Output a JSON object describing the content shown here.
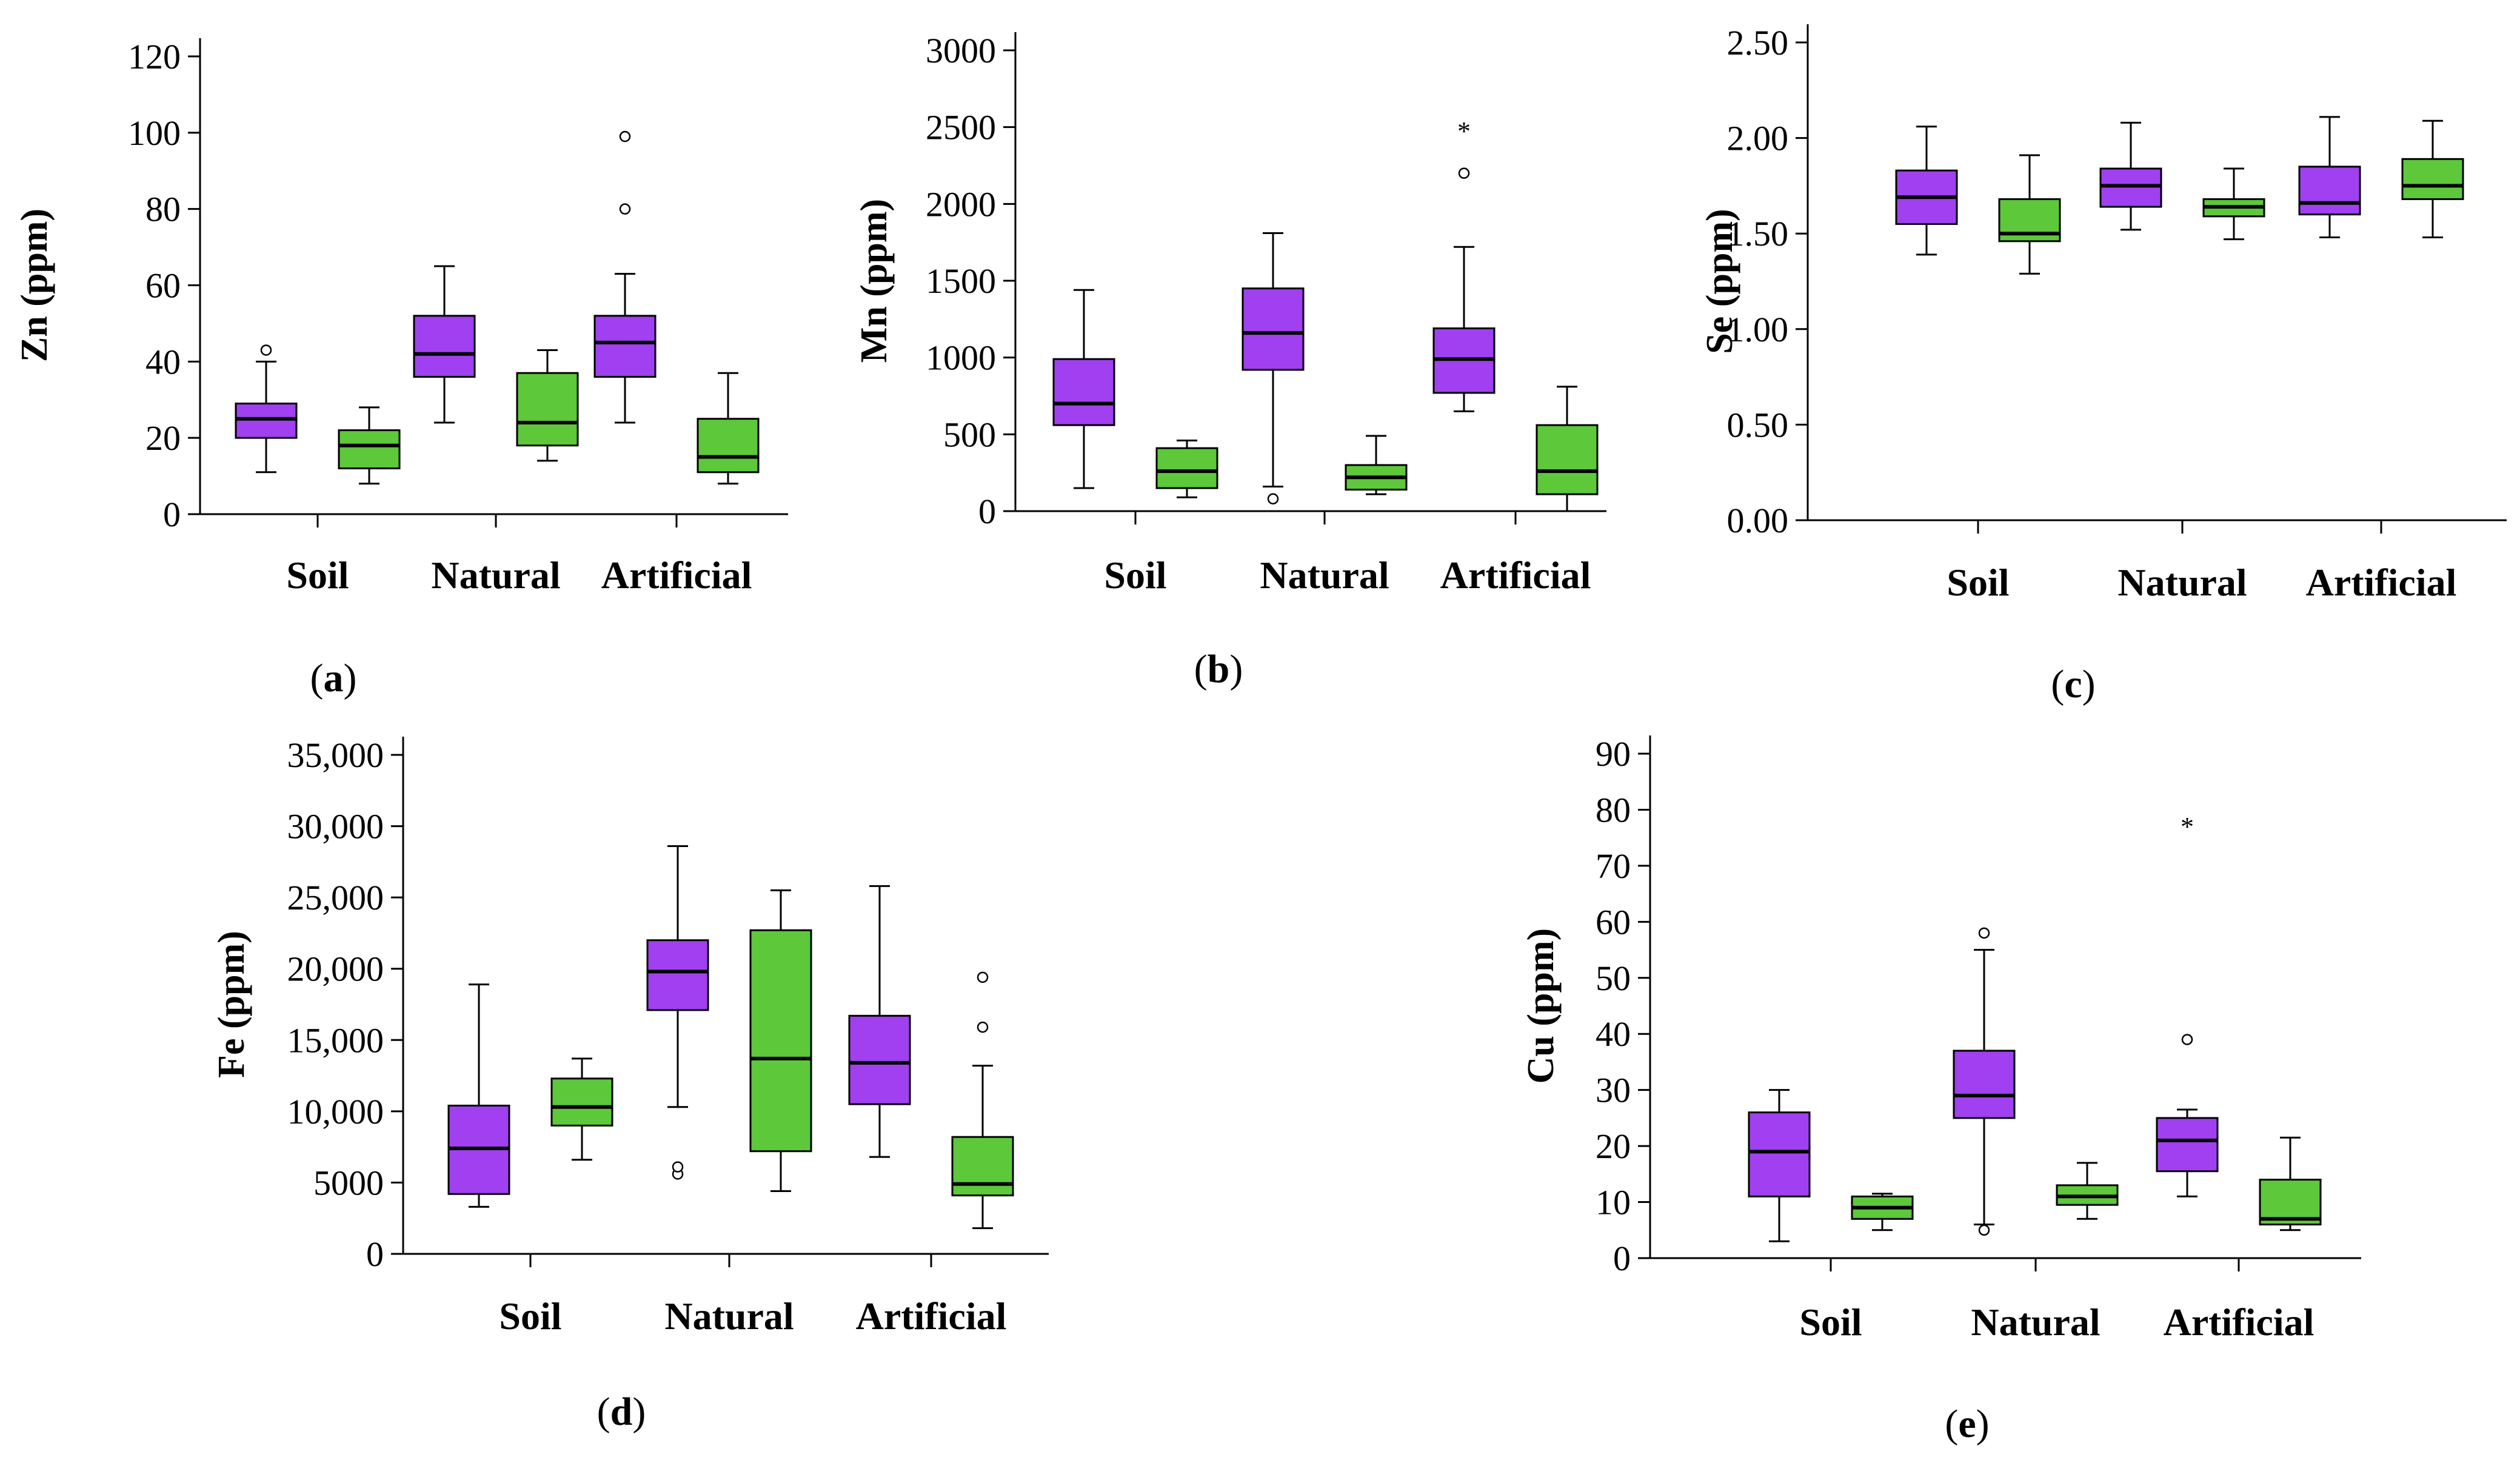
{
  "figure": {
    "colors": {
      "purple": "#a040f0",
      "green": "#5cc83a",
      "axis": "#000000"
    },
    "group_order": [
      "purple",
      "green"
    ]
  },
  "chart_data": [
    {
      "id": "a",
      "type": "box",
      "caption": "(a)",
      "ylabel": "Zn (ppm)",
      "ylim": [
        0,
        120
      ],
      "yticks": [
        0,
        20,
        40,
        60,
        80,
        100,
        120
      ],
      "ytick_labels": [
        "0",
        "20",
        "40",
        "60",
        "80",
        "100",
        "120"
      ],
      "categories": [
        "Soil",
        "Natural",
        "Artificial"
      ],
      "boxes": [
        {
          "category": "Soil",
          "group": "purple",
          "min": 11,
          "q1": 20,
          "median": 25,
          "q3": 29,
          "max": 40,
          "outliers": [
            {
              "v": 43,
              "m": "o"
            }
          ]
        },
        {
          "category": "Soil",
          "group": "green",
          "min": 8,
          "q1": 12,
          "median": 18,
          "q3": 22,
          "max": 28,
          "outliers": []
        },
        {
          "category": "Natural",
          "group": "purple",
          "min": 24,
          "q1": 36,
          "median": 42,
          "q3": 52,
          "max": 65,
          "outliers": []
        },
        {
          "category": "Natural",
          "group": "green",
          "min": 14,
          "q1": 18,
          "median": 24,
          "q3": 37,
          "max": 43,
          "outliers": []
        },
        {
          "category": "Artificial",
          "group": "purple",
          "min": 24,
          "q1": 36,
          "median": 45,
          "q3": 52,
          "max": 63,
          "outliers": [
            {
              "v": 80,
              "m": "o"
            },
            {
              "v": 99,
              "m": "o"
            }
          ]
        },
        {
          "category": "Artificial",
          "group": "green",
          "min": 8,
          "q1": 11,
          "median": 15,
          "q3": 25,
          "max": 37,
          "outliers": []
        }
      ]
    },
    {
      "id": "b",
      "type": "box",
      "caption": "(b)",
      "ylabel": "Mn (ppm)",
      "ylim": [
        0,
        3000
      ],
      "yticks": [
        0,
        500,
        1000,
        1500,
        2000,
        2500,
        3000
      ],
      "ytick_labels": [
        "0",
        "500",
        "1000",
        "1500",
        "2000",
        "2500",
        "3000"
      ],
      "categories": [
        "Soil",
        "Natural",
        "Artificial"
      ],
      "boxes": [
        {
          "category": "Soil",
          "group": "purple",
          "min": 150,
          "q1": 560,
          "median": 700,
          "q3": 990,
          "max": 1440,
          "outliers": []
        },
        {
          "category": "Soil",
          "group": "green",
          "min": 90,
          "q1": 150,
          "median": 260,
          "q3": 410,
          "max": 460,
          "outliers": []
        },
        {
          "category": "Natural",
          "group": "purple",
          "min": 160,
          "q1": 920,
          "median": 1160,
          "q3": 1450,
          "max": 1810,
          "outliers": [
            {
              "v": 80,
              "m": "o"
            }
          ]
        },
        {
          "category": "Natural",
          "group": "green",
          "min": 110,
          "q1": 140,
          "median": 220,
          "q3": 300,
          "max": 490,
          "outliers": []
        },
        {
          "category": "Artificial",
          "group": "purple",
          "min": 650,
          "q1": 770,
          "median": 990,
          "q3": 1190,
          "max": 1720,
          "outliers": [
            {
              "v": 2200,
              "m": "o"
            },
            {
              "v": 2510,
              "m": "*"
            }
          ]
        },
        {
          "category": "Artificial",
          "group": "green",
          "min": 0,
          "q1": 110,
          "median": 260,
          "q3": 560,
          "max": 810,
          "outliers": []
        }
      ]
    },
    {
      "id": "c",
      "type": "box",
      "caption": "(c)",
      "ylabel": "Se (ppm)",
      "ylim": [
        0,
        2.5
      ],
      "yticks": [
        0,
        0.5,
        1,
        1.5,
        2,
        2.5
      ],
      "ytick_labels": [
        "0.00",
        "0.50",
        "1.00",
        "1.50",
        "2.00",
        "2.50"
      ],
      "categories": [
        "Soil",
        "Natural",
        "Artificial"
      ],
      "boxes": [
        {
          "category": "Soil",
          "group": "purple",
          "min": 1.39,
          "q1": 1.55,
          "median": 1.69,
          "q3": 1.83,
          "max": 2.06,
          "outliers": []
        },
        {
          "category": "Soil",
          "group": "green",
          "min": 1.29,
          "q1": 1.46,
          "median": 1.5,
          "q3": 1.68,
          "max": 1.91,
          "outliers": []
        },
        {
          "category": "Natural",
          "group": "purple",
          "min": 1.52,
          "q1": 1.64,
          "median": 1.75,
          "q3": 1.84,
          "max": 2.08,
          "outliers": []
        },
        {
          "category": "Natural",
          "group": "green",
          "min": 1.47,
          "q1": 1.59,
          "median": 1.64,
          "q3": 1.68,
          "max": 1.84,
          "outliers": []
        },
        {
          "category": "Artificial",
          "group": "purple",
          "min": 1.48,
          "q1": 1.6,
          "median": 1.66,
          "q3": 1.85,
          "max": 2.11,
          "outliers": []
        },
        {
          "category": "Artificial",
          "group": "green",
          "min": 1.48,
          "q1": 1.68,
          "median": 1.75,
          "q3": 1.89,
          "max": 2.09,
          "outliers": []
        }
      ]
    },
    {
      "id": "d",
      "type": "box",
      "caption": "(d)",
      "ylabel": "Fe (ppm)",
      "ylim": [
        0,
        35000
      ],
      "yticks": [
        0,
        5000,
        10000,
        15000,
        20000,
        25000,
        30000,
        35000
      ],
      "ytick_labels": [
        "0",
        "5000",
        "10,000",
        "15,000",
        "20,000",
        "25,000",
        "30,000",
        "35,000"
      ],
      "categories": [
        "Soil",
        "Natural",
        "Artificial"
      ],
      "boxes": [
        {
          "category": "Soil",
          "group": "purple",
          "min": 3300,
          "q1": 4200,
          "median": 7400,
          "q3": 10400,
          "max": 18900,
          "outliers": []
        },
        {
          "category": "Soil",
          "group": "green",
          "min": 6600,
          "q1": 9000,
          "median": 10300,
          "q3": 12300,
          "max": 13700,
          "outliers": []
        },
        {
          "category": "Natural",
          "group": "purple",
          "min": 10300,
          "q1": 17100,
          "median": 19800,
          "q3": 22000,
          "max": 28600,
          "outliers": [
            {
              "v": 5600,
              "m": "o"
            },
            {
              "v": 6100,
              "m": "o"
            }
          ]
        },
        {
          "category": "Natural",
          "group": "green",
          "min": 4400,
          "q1": 7200,
          "median": 13700,
          "q3": 22700,
          "max": 25500,
          "outliers": []
        },
        {
          "category": "Artificial",
          "group": "purple",
          "min": 6800,
          "q1": 10500,
          "median": 13400,
          "q3": 16700,
          "max": 25800,
          "outliers": []
        },
        {
          "category": "Artificial",
          "group": "green",
          "min": 1800,
          "q1": 4100,
          "median": 4900,
          "q3": 8200,
          "max": 13200,
          "outliers": [
            {
              "v": 15900,
              "m": "o"
            },
            {
              "v": 19400,
              "m": "o"
            }
          ]
        }
      ]
    },
    {
      "id": "e",
      "type": "box",
      "caption": "(e)",
      "ylabel": "Cu (ppm)",
      "ylim": [
        0,
        90
      ],
      "yticks": [
        0,
        10,
        20,
        30,
        40,
        50,
        60,
        70,
        80,
        90
      ],
      "ytick_labels": [
        "0",
        "10",
        "20",
        "30",
        "40",
        "50",
        "60",
        "70",
        "80",
        "90"
      ],
      "categories": [
        "Soil",
        "Natural",
        "Artificial"
      ],
      "boxes": [
        {
          "category": "Soil",
          "group": "purple",
          "min": 3,
          "q1": 11,
          "median": 19,
          "q3": 26,
          "max": 30,
          "outliers": []
        },
        {
          "category": "Soil",
          "group": "green",
          "min": 5,
          "q1": 7,
          "median": 9,
          "q3": 11,
          "max": 11.5,
          "outliers": []
        },
        {
          "category": "Natural",
          "group": "purple",
          "min": 6,
          "q1": 25,
          "median": 29,
          "q3": 37,
          "max": 55,
          "outliers": [
            {
              "v": 5,
              "m": "o"
            },
            {
              "v": 58,
              "m": "o"
            }
          ]
        },
        {
          "category": "Natural",
          "group": "green",
          "min": 7,
          "q1": 9.5,
          "median": 11,
          "q3": 13,
          "max": 17,
          "outliers": []
        },
        {
          "category": "Artificial",
          "group": "purple",
          "min": 11,
          "q1": 15.5,
          "median": 21,
          "q3": 25,
          "max": 26.5,
          "outliers": [
            {
              "v": 39,
              "m": "o"
            },
            {
              "v": 78,
              "m": "*"
            }
          ]
        },
        {
          "category": "Artificial",
          "group": "green",
          "min": 5,
          "q1": 6,
          "median": 7,
          "q3": 14,
          "max": 21.5,
          "outliers": []
        }
      ]
    }
  ]
}
